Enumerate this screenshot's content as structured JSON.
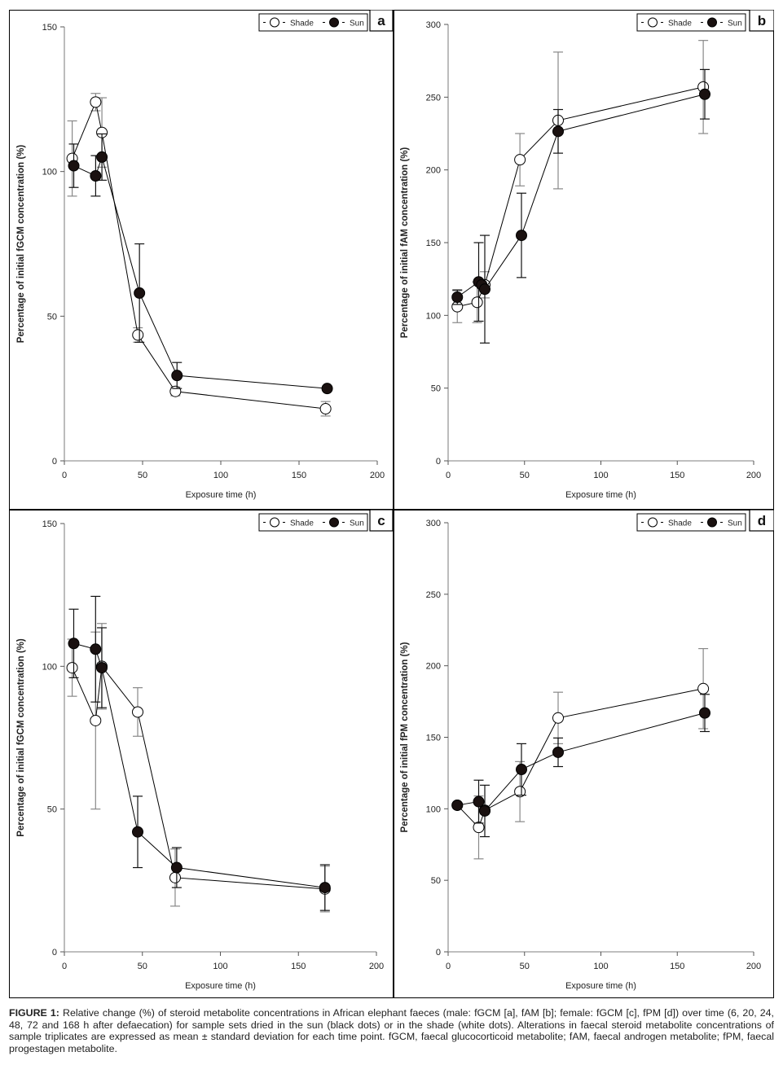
{
  "figure_label": "FIGURE 1:",
  "caption": "Relative change (%) of steroid metabolite concentrations in African elephant faeces (male: fGCM [a], fAM [b]; female: fGCM [c], fPM [d]) over time (6, 20, 24, 48, 72 and 168 h after defaecation) for sample sets dried in the sun (black dots) or in the shade (white dots). Alterations in faecal steroid metabolite concentrations of sample triplicates are expressed as mean ± standard deviation for each time point. fGCM, faecal glucocorticoid metabolite; fAM, faecal androgen metabolite; fPM, faecal progestagen metabolite.",
  "legend": {
    "shade": "Shade",
    "sun": "Sun",
    "placement": "top-right"
  },
  "colors": {
    "shade_fill": "#ffffff",
    "sun_fill": "#1a1110",
    "line": "#000000",
    "axis": "#999999"
  },
  "chart_data": [
    {
      "panel": "a",
      "type": "line",
      "xlabel": "Exposure time (h)",
      "ylabel": "Percentage of initial fGCM concentration (%)",
      "xlim": [
        0,
        200
      ],
      "ylim": [
        0,
        150
      ],
      "xticks": [
        0,
        50,
        100,
        150,
        200
      ],
      "yticks": [
        0,
        50,
        100,
        150
      ],
      "grid": false,
      "series": [
        {
          "name": "Shade",
          "x": [
            5,
            20,
            24,
            47,
            71,
            167
          ],
          "y": [
            104.5,
            124,
            113.5,
            43.5,
            24,
            18
          ],
          "sd": [
            13,
            3,
            12,
            2.5,
            1.5,
            2.5
          ]
        },
        {
          "name": "Sun",
          "x": [
            6,
            20,
            24,
            48,
            72,
            168
          ],
          "y": [
            102,
            98.5,
            105,
            58,
            29.5,
            25
          ],
          "sd": [
            7.5,
            7,
            8,
            17,
            4.5,
            0.5
          ]
        }
      ]
    },
    {
      "panel": "b",
      "type": "line",
      "xlabel": "Exposure time (h)",
      "ylabel": "Percentage of initial fAM concentration (%)",
      "xlim": [
        0,
        200
      ],
      "ylim": [
        0,
        300
      ],
      "xticks": [
        0,
        50,
        100,
        150,
        200
      ],
      "yticks": [
        0,
        50,
        100,
        150,
        200,
        250,
        300
      ],
      "grid": false,
      "series": [
        {
          "name": "Shade",
          "x": [
            6,
            19,
            24,
            47,
            72,
            167
          ],
          "y": [
            106,
            109,
            121,
            207,
            234,
            257
          ],
          "sd": [
            11,
            14,
            9,
            18,
            47,
            32
          ]
        },
        {
          "name": "Sun",
          "x": [
            6,
            20,
            22,
            24,
            48,
            72,
            168
          ],
          "y": [
            112.5,
            123,
            121,
            118,
            155,
            226.5,
            252
          ],
          "sd": [
            5,
            27,
            2,
            37,
            29,
            15,
            17
          ]
        }
      ]
    },
    {
      "panel": "c",
      "type": "line",
      "xlabel": "Exposure time (h)",
      "ylabel": "Percentage of initial fGCM concentration (%)",
      "xlim": [
        0,
        200
      ],
      "ylim": [
        0,
        150
      ],
      "xticks": [
        0,
        50,
        100,
        150,
        200
      ],
      "yticks": [
        0,
        50,
        100,
        150
      ],
      "grid": false,
      "series": [
        {
          "name": "Shade",
          "x": [
            5,
            20,
            24,
            47,
            71,
            167
          ],
          "y": [
            99.5,
            81,
            100,
            84,
            26,
            22
          ],
          "sd": [
            10,
            31,
            15,
            8.5,
            10,
            8
          ]
        },
        {
          "name": "Sun",
          "x": [
            6,
            20,
            24,
            47,
            72,
            167
          ],
          "y": [
            108,
            106,
            99.5,
            42,
            29.5,
            22.5
          ],
          "sd": [
            12,
            18.5,
            14,
            12.5,
            7,
            8
          ]
        }
      ]
    },
    {
      "panel": "d",
      "type": "line",
      "xlabel": "Exposure time (h)",
      "ylabel": "Percentage of initial fPM concentration (%)",
      "xlim": [
        0,
        200
      ],
      "ylim": [
        0,
        300
      ],
      "xticks": [
        0,
        50,
        100,
        150,
        200
      ],
      "yticks": [
        0,
        50,
        100,
        150,
        200,
        250,
        300
      ],
      "grid": false,
      "series": [
        {
          "name": "Shade",
          "x": [
            6,
            20,
            24,
            47,
            72,
            167
          ],
          "y": [
            102.5,
            87,
            99,
            112,
            163.5,
            184
          ],
          "sd": [
            0,
            22,
            0,
            21,
            18,
            28
          ]
        },
        {
          "name": "Sun",
          "x": [
            6,
            20,
            24,
            48,
            72,
            168
          ],
          "y": [
            102.5,
            105,
            98.5,
            127.5,
            139.5,
            167
          ],
          "sd": [
            0,
            15,
            18,
            18,
            10,
            13
          ]
        }
      ]
    }
  ]
}
